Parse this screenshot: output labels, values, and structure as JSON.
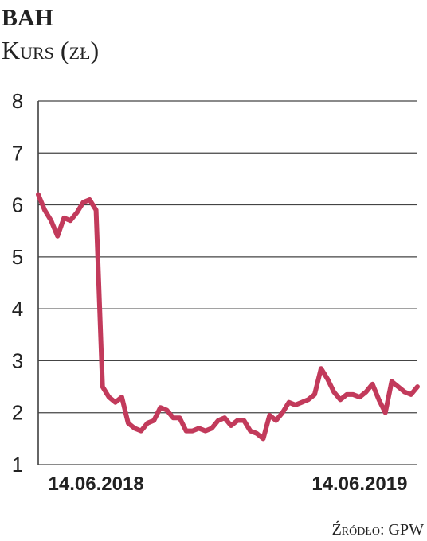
{
  "chart_data": {
    "type": "line",
    "title": "BAH",
    "subtitle": "Kurs (zł)",
    "source": "Źródło: GPW",
    "categories": [
      null,
      null,
      null,
      null,
      null,
      null,
      null,
      null,
      null,
      "14.06.2018",
      null,
      null,
      null,
      null,
      null,
      null,
      null,
      null,
      null,
      null,
      null,
      null,
      null,
      null,
      null,
      null,
      null,
      null,
      null,
      null,
      null,
      null,
      null,
      null,
      null,
      null,
      null,
      null,
      null,
      null,
      null,
      null,
      null,
      null,
      null,
      null,
      null,
      null,
      null,
      null,
      "14.06.2019",
      null,
      null,
      null,
      null,
      null,
      null,
      null,
      null,
      null
    ],
    "series": [
      {
        "color": "#c23a5b",
        "values": [
          6.2,
          5.9,
          5.7,
          5.4,
          5.75,
          5.7,
          5.85,
          6.05,
          6.1,
          5.9,
          2.5,
          2.3,
          2.2,
          2.3,
          1.8,
          1.7,
          1.65,
          1.8,
          1.85,
          2.1,
          2.05,
          1.9,
          1.9,
          1.65,
          1.65,
          1.7,
          1.65,
          1.7,
          1.85,
          1.9,
          1.75,
          1.85,
          1.85,
          1.65,
          1.6,
          1.5,
          1.95,
          1.85,
          2.0,
          2.2,
          2.15,
          2.2,
          2.25,
          2.35,
          2.85,
          2.65,
          2.4,
          2.25,
          2.35,
          2.35,
          2.3,
          2.4,
          2.55,
          2.25,
          2.0,
          2.6,
          2.5,
          2.4,
          2.35,
          2.5
        ]
      }
    ],
    "ylim": [
      1,
      8
    ],
    "yticks": [
      1,
      2,
      3,
      4,
      5,
      6,
      7,
      8
    ],
    "grid": true
  }
}
